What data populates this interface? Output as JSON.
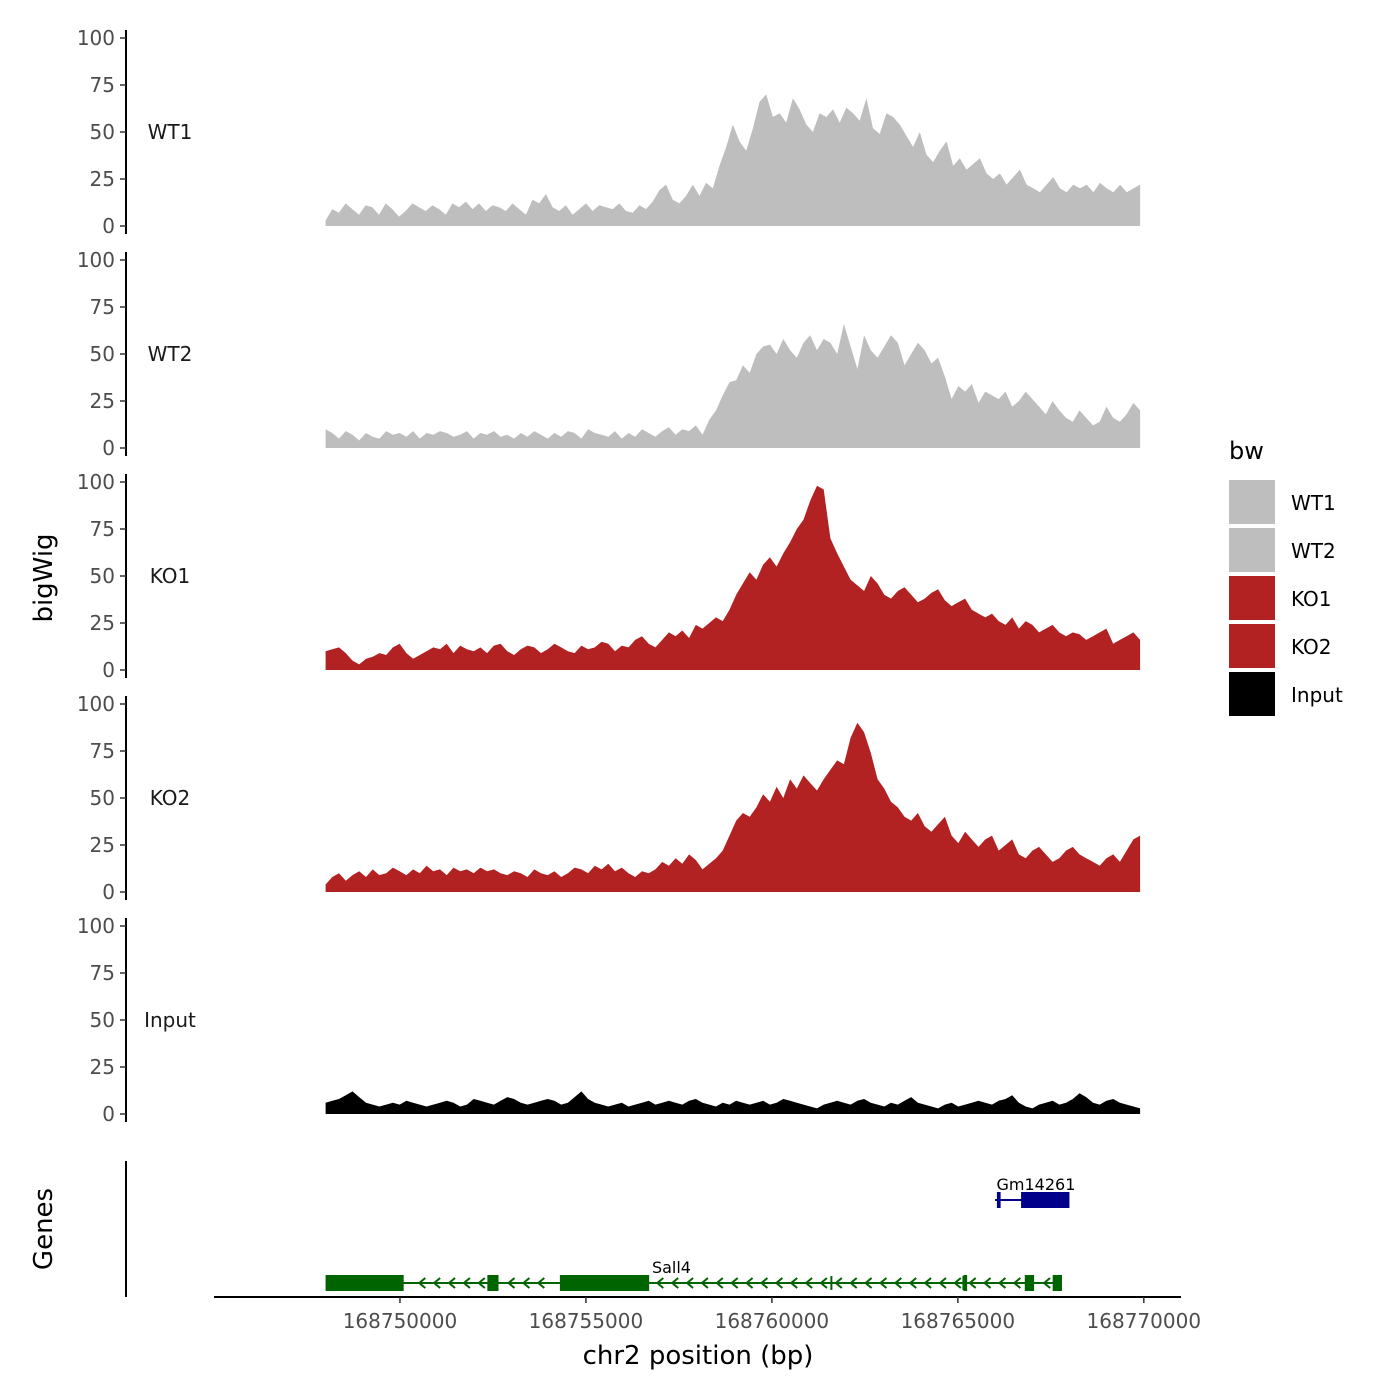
{
  "chart_data": {
    "type": "area",
    "xlabel": "chr2 position (bp)",
    "ylabel": "bigWig",
    "genes_label": "Genes",
    "xlim": [
      168745000,
      168771000
    ],
    "data_range": [
      168748000,
      168769900
    ],
    "x_ticks": [
      168750000,
      168755000,
      168760000,
      168765000,
      168770000
    ],
    "x_tick_labels": [
      "168750000",
      "168755000",
      "168760000",
      "168765000",
      "168770000"
    ],
    "ylim": [
      0,
      100
    ],
    "y_ticks": [
      0,
      25,
      50,
      75,
      100
    ],
    "y_tick_labels": [
      "0",
      "25",
      "50",
      "75",
      "100"
    ],
    "legend_title": "bw",
    "tracks": [
      {
        "name": "WT1",
        "color": "#BEBEBE",
        "values": [
          3,
          9,
          7,
          12,
          9,
          6,
          11,
          10,
          6,
          12,
          9,
          5,
          8,
          12,
          10,
          8,
          11,
          9,
          6,
          12,
          10,
          13,
          9,
          12,
          8,
          11,
          10,
          8,
          12,
          9,
          6,
          14,
          12,
          17,
          10,
          8,
          11,
          6,
          9,
          12,
          8,
          11,
          10,
          9,
          12,
          8,
          7,
          11,
          9,
          13,
          19,
          22,
          14,
          12,
          16,
          22,
          16,
          23,
          20,
          32,
          42,
          54,
          45,
          40,
          52,
          66,
          70,
          58,
          60,
          55,
          68,
          62,
          54,
          50,
          60,
          58,
          62,
          55,
          63,
          60,
          56,
          68,
          52,
          49,
          60,
          58,
          54,
          48,
          42,
          50,
          38,
          34,
          40,
          45,
          32,
          36,
          30,
          33,
          36,
          28,
          25,
          28,
          22,
          26,
          30,
          22,
          20,
          18,
          22,
          26,
          20,
          18,
          22,
          20,
          22,
          18,
          23,
          20,
          18,
          22,
          18,
          20,
          22
        ]
      },
      {
        "name": "WT2",
        "color": "#BEBEBE",
        "values": [
          10,
          8,
          5,
          9,
          7,
          4,
          8,
          6,
          5,
          9,
          7,
          8,
          6,
          9,
          5,
          8,
          7,
          9,
          8,
          6,
          7,
          9,
          5,
          8,
          7,
          9,
          6,
          7,
          5,
          8,
          6,
          9,
          7,
          5,
          8,
          6,
          9,
          8,
          5,
          10,
          8,
          7,
          6,
          9,
          5,
          8,
          6,
          10,
          8,
          6,
          9,
          11,
          7,
          10,
          9,
          12,
          7,
          15,
          20,
          28,
          35,
          36,
          44,
          40,
          50,
          54,
          55,
          50,
          58,
          52,
          48,
          56,
          60,
          52,
          58,
          56,
          50,
          66,
          54,
          42,
          60,
          52,
          48,
          54,
          60,
          56,
          44,
          50,
          56,
          52,
          45,
          48,
          38,
          26,
          33,
          30,
          34,
          24,
          30,
          28,
          26,
          30,
          22,
          25,
          30,
          26,
          22,
          18,
          25,
          20,
          16,
          14,
          20,
          16,
          12,
          14,
          22,
          16,
          14,
          18,
          24,
          20
        ]
      },
      {
        "name": "KO1",
        "color": "#B22222",
        "values": [
          10,
          11,
          12,
          9,
          5,
          3,
          6,
          7,
          9,
          8,
          12,
          14,
          9,
          6,
          8,
          10,
          12,
          11,
          14,
          9,
          13,
          11,
          10,
          12,
          9,
          13,
          14,
          10,
          8,
          11,
          13,
          12,
          9,
          11,
          14,
          12,
          10,
          9,
          13,
          11,
          12,
          15,
          14,
          10,
          13,
          12,
          16,
          18,
          14,
          12,
          16,
          20,
          18,
          21,
          17,
          24,
          22,
          25,
          28,
          26,
          32,
          40,
          46,
          52,
          48,
          56,
          60,
          55,
          62,
          68,
          75,
          80,
          90,
          98,
          96,
          70,
          62,
          55,
          48,
          45,
          42,
          50,
          46,
          40,
          38,
          42,
          44,
          40,
          36,
          38,
          41,
          43,
          37,
          34,
          36,
          38,
          32,
          30,
          28,
          30,
          26,
          24,
          28,
          22,
          26,
          24,
          20,
          22,
          24,
          20,
          18,
          20,
          19,
          16,
          18,
          20,
          22,
          14,
          16,
          18,
          20,
          16
        ]
      },
      {
        "name": "KO2",
        "color": "#B22222",
        "values": [
          4,
          8,
          10,
          6,
          9,
          11,
          8,
          12,
          9,
          10,
          13,
          11,
          9,
          12,
          10,
          14,
          11,
          12,
          9,
          13,
          11,
          12,
          10,
          13,
          11,
          12,
          10,
          9,
          11,
          10,
          8,
          12,
          10,
          9,
          11,
          8,
          10,
          13,
          12,
          10,
          14,
          12,
          15,
          11,
          13,
          10,
          8,
          11,
          10,
          12,
          16,
          14,
          18,
          15,
          20,
          17,
          12,
          15,
          18,
          22,
          30,
          38,
          42,
          40,
          45,
          52,
          48,
          56,
          50,
          60,
          55,
          62,
          58,
          54,
          60,
          65,
          70,
          68,
          82,
          90,
          85,
          74,
          60,
          55,
          48,
          45,
          40,
          38,
          42,
          35,
          32,
          36,
          40,
          30,
          26,
          32,
          28,
          24,
          28,
          30,
          22,
          25,
          28,
          20,
          18,
          22,
          24,
          20,
          16,
          18,
          22,
          24,
          20,
          18,
          16,
          14,
          18,
          20,
          16,
          22,
          28,
          30
        ]
      },
      {
        "name": "Input",
        "color": "#000000",
        "values": [
          6,
          7,
          8,
          10,
          12,
          9,
          6,
          5,
          4,
          5,
          6,
          5,
          7,
          6,
          5,
          4,
          5,
          6,
          7,
          6,
          4,
          5,
          8,
          7,
          6,
          5,
          7,
          9,
          8,
          6,
          5,
          6,
          7,
          8,
          7,
          5,
          6,
          9,
          12,
          8,
          6,
          5,
          4,
          5,
          6,
          4,
          5,
          6,
          7,
          5,
          6,
          7,
          6,
          5,
          7,
          8,
          6,
          5,
          4,
          6,
          5,
          7,
          6,
          5,
          6,
          7,
          5,
          6,
          8,
          7,
          6,
          5,
          4,
          3,
          5,
          6,
          7,
          6,
          5,
          7,
          8,
          6,
          5,
          4,
          6,
          5,
          7,
          9,
          6,
          5,
          4,
          3,
          5,
          6,
          4,
          5,
          6,
          7,
          6,
          5,
          7,
          8,
          10,
          6,
          4,
          3,
          5,
          6,
          7,
          5,
          6,
          8,
          11,
          9,
          6,
          5,
          7,
          8,
          6,
          5,
          4,
          3
        ]
      }
    ],
    "genes": [
      {
        "name": "Sall4",
        "strand": "-",
        "color": "#006400",
        "start": 168748000,
        "end": 168767800,
        "exons": [
          [
            168748000,
            168750100
          ],
          [
            168752350,
            168752650
          ],
          [
            168754300,
            168756700
          ],
          [
            168765150,
            168765250
          ],
          [
            168766800,
            168767050
          ],
          [
            168767550,
            168767800
          ]
        ],
        "introns": [
          168761600,
          168765150
        ]
      },
      {
        "name": "Gm14261",
        "strand": "+",
        "color": "#00008B",
        "start": 168766000,
        "end": 168768000,
        "exons": [
          [
            168766050,
            168766150
          ],
          [
            168766700,
            168768000
          ]
        ],
        "introns": []
      }
    ]
  }
}
